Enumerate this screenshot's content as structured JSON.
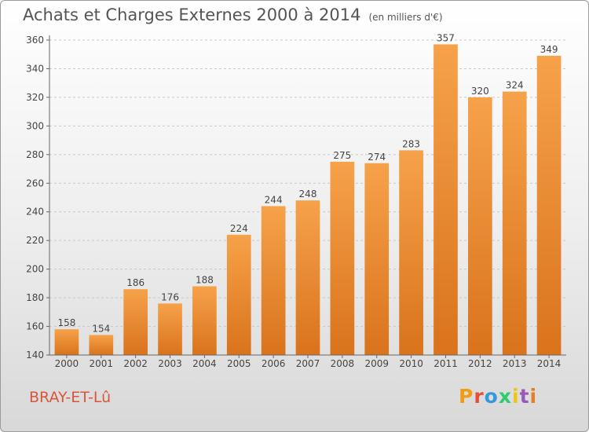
{
  "header": {
    "title": "Achats et Charges Externes 2000 à 2014",
    "unit": "(en milliers d'€)"
  },
  "footer": {
    "commune": "BRAY-ET-Lû",
    "logo": "Proxiti",
    "logo_colors": [
      "#f39c12",
      "#e74c3c",
      "#3498db",
      "#2ecc71",
      "#f1c40f",
      "#9b59b6",
      "#e67e22"
    ]
  },
  "colors": {
    "bar_light": "#f6a24a",
    "bar_dark": "#d9731c",
    "grid": "#c8c8c8",
    "axis": "#666666",
    "text": "#444444"
  },
  "chart_data": {
    "type": "bar",
    "title": "Achats et Charges Externes 2000 à 2014",
    "subtitle": "(en milliers d'€)",
    "xlabel": "",
    "ylabel": "",
    "categories": [
      "2000",
      "2001",
      "2002",
      "2003",
      "2004",
      "2005",
      "2006",
      "2007",
      "2008",
      "2009",
      "2010",
      "2011",
      "2012",
      "2013",
      "2014"
    ],
    "values": [
      158,
      154,
      186,
      176,
      188,
      224,
      244,
      248,
      275,
      274,
      283,
      357,
      320,
      324,
      349
    ],
    "ylim": [
      140,
      360
    ],
    "yticks": [
      140,
      160,
      180,
      200,
      220,
      240,
      260,
      280,
      300,
      320,
      340,
      360
    ],
    "grid": true,
    "data_labels": true
  }
}
